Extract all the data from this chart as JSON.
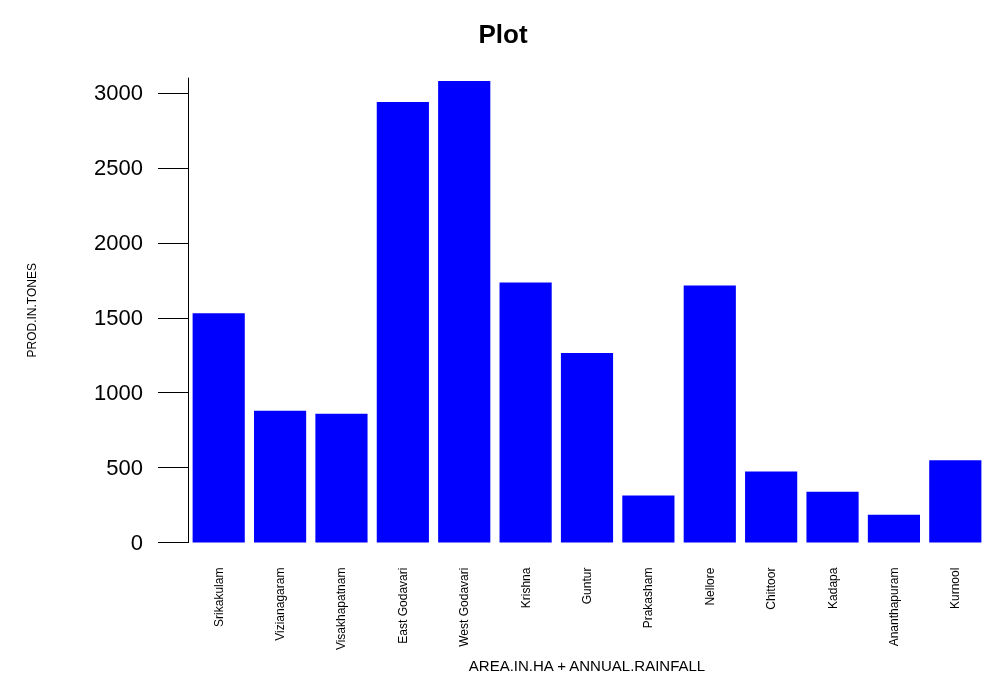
{
  "chart_data": {
    "type": "bar",
    "title": "Plot",
    "xlabel": "AREA.IN.HA + ANNUAL.RAINFALL",
    "ylabel": "PROD.IN.TONES",
    "categories": [
      "Srikakulam",
      "Vizianagaram",
      "Visakhapatnam",
      "East Godavari",
      "West Godavari",
      "Krishna",
      "Guntur",
      "Prakasham",
      "Nellore",
      "Chittoor",
      "Kadapa",
      "Ananthapuram",
      "Kurnool"
    ],
    "values": [
      1530,
      880,
      860,
      2940,
      3080,
      1735,
      1265,
      315,
      1715,
      475,
      340,
      185,
      550
    ],
    "color": "#0000ff",
    "ylim": [
      0,
      3100
    ],
    "yticks": [
      0,
      500,
      1000,
      1500,
      2000,
      2500,
      3000
    ],
    "grid": false
  }
}
